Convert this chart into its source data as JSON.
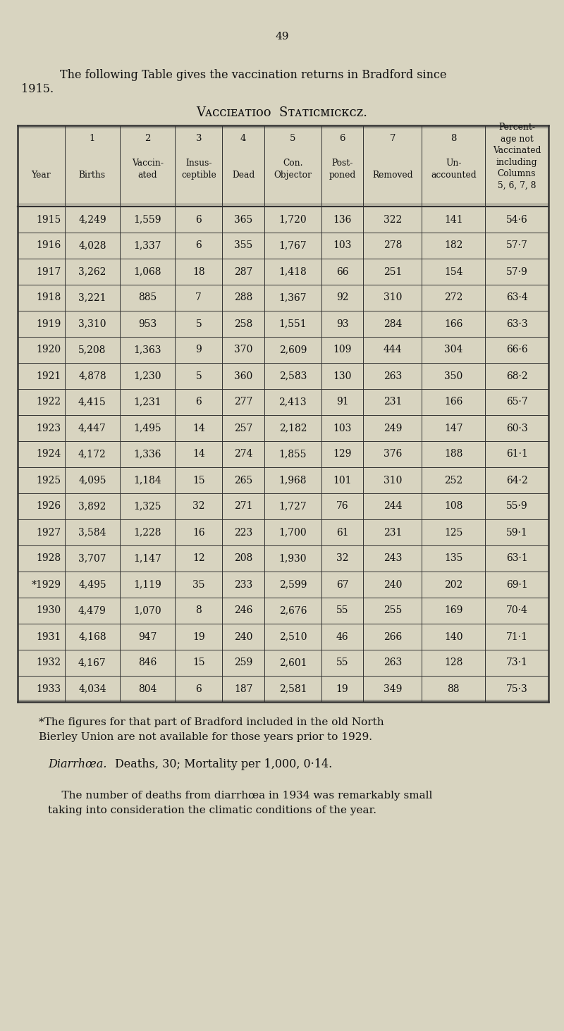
{
  "page_number": "49",
  "bg_color": "#d8d4c0",
  "table_bg": "#d8d4c0",
  "border_color": "#333333",
  "text_color": "#111111",
  "figsize": [
    8.0,
    14.63
  ],
  "dpi": 100,
  "rows": [
    [
      "1915",
      "4,249",
      "1,559",
      "6",
      "365",
      "1,720",
      "136",
      "322",
      "141",
      "54·6"
    ],
    [
      "1916",
      "4,028",
      "1,337",
      "6",
      "355",
      "1,767",
      "103",
      "278",
      "182",
      "57·7"
    ],
    [
      "1917",
      "3,262",
      "1,068",
      "18",
      "287",
      "1,418",
      "66",
      "251",
      "154",
      "57·9"
    ],
    [
      "1918",
      "3,221",
      "885",
      "7",
      "288",
      "1,367",
      "92",
      "310",
      "272",
      "63·4"
    ],
    [
      "1919",
      "3,310",
      "953",
      "5",
      "258",
      "1,551",
      "93",
      "284",
      "166",
      "63·3"
    ],
    [
      "1920",
      "5,208",
      "1,363",
      "9",
      "370",
      "2,609",
      "109",
      "444",
      "304",
      "66·6"
    ],
    [
      "1921",
      "4,878",
      "1,230",
      "5",
      "360",
      "2,583",
      "130",
      "263",
      "350",
      "68·2"
    ],
    [
      "1922",
      "4,415",
      "1,231",
      "6",
      "277",
      "2,413",
      "91",
      "231",
      "166",
      "65·7"
    ],
    [
      "1923",
      "4,447",
      "1,495",
      "14",
      "257",
      "2,182",
      "103",
      "249",
      "147",
      "60·3"
    ],
    [
      "1924",
      "4,172",
      "1,336",
      "14",
      "274",
      "1,855",
      "129",
      "376",
      "188",
      "61·1"
    ],
    [
      "1925",
      "4,095",
      "1,184",
      "15",
      "265",
      "1,968",
      "101",
      "310",
      "252",
      "64·2"
    ],
    [
      "1926",
      "3,892",
      "1,325",
      "32",
      "271",
      "1,727",
      "76",
      "244",
      "108",
      "55·9"
    ],
    [
      "1927",
      "3,584",
      "1,228",
      "16",
      "223",
      "1,700",
      "61",
      "231",
      "125",
      "59·1"
    ],
    [
      "1928",
      "3,707",
      "1,147",
      "12",
      "208",
      "1,930",
      "32",
      "243",
      "135",
      "63·1"
    ],
    [
      "*1929",
      "4,495",
      "1,119",
      "35",
      "233",
      "2,599",
      "67",
      "240",
      "202",
      "69·1"
    ],
    [
      "1930",
      "4,479",
      "1,070",
      "8",
      "246",
      "2,676",
      "55",
      "255",
      "169",
      "70·4"
    ],
    [
      "1931",
      "4,168",
      "947",
      "19",
      "240",
      "2,510",
      "46",
      "266",
      "140",
      "71·1"
    ],
    [
      "1932",
      "4,167",
      "846",
      "15",
      "259",
      "2,601",
      "55",
      "263",
      "128",
      "73·1"
    ],
    [
      "1933",
      "4,034",
      "804",
      "6",
      "187",
      "2,581",
      "19",
      "349",
      "88",
      "75·3"
    ]
  ]
}
